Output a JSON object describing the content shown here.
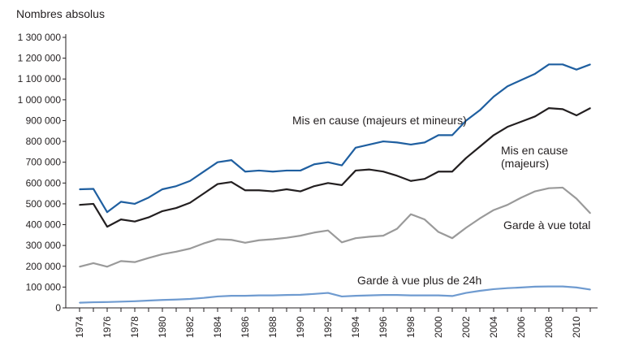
{
  "chart_data": {
    "type": "line",
    "ylabel": "Nombres absolus",
    "ylim": [
      0,
      1300000
    ],
    "yticks": [
      0,
      100000,
      200000,
      300000,
      400000,
      500000,
      600000,
      700000,
      800000,
      900000,
      1000000,
      1100000,
      1200000,
      1300000
    ],
    "ytick_labels": [
      "0",
      "100 000",
      "200 000",
      "300 000",
      "400 000",
      "500 000",
      "600 000",
      "700 000",
      "800 000",
      "900 000",
      "1 000 000",
      "1 100 000",
      "1 200 000",
      "1 300 000"
    ],
    "x": [
      1974,
      1975,
      1976,
      1977,
      1978,
      1979,
      1980,
      1981,
      1982,
      1983,
      1984,
      1985,
      1986,
      1987,
      1988,
      1989,
      1990,
      1991,
      1992,
      1993,
      1994,
      1995,
      1996,
      1997,
      1998,
      1999,
      2000,
      2001,
      2002,
      2003,
      2004,
      2005,
      2006,
      2007,
      2008,
      2009,
      2010,
      2011
    ],
    "xtick_labels": [
      "1974",
      "1976",
      "1978",
      "1980",
      "1982",
      "1984",
      "1986",
      "1988",
      "1990",
      "1992",
      "1994",
      "1996",
      "1998",
      "2000",
      "2002",
      "2004",
      "2006",
      "2008",
      "2010"
    ],
    "grid": false,
    "series": [
      {
        "name": "Mis en cause (majeurs et mineurs)",
        "color": "#1f5fa0",
        "values": [
          570000,
          572000,
          460000,
          510000,
          500000,
          530000,
          570000,
          585000,
          610000,
          655000,
          700000,
          710000,
          655000,
          660000,
          655000,
          660000,
          660000,
          690000,
          700000,
          685000,
          770000,
          785000,
          800000,
          795000,
          785000,
          795000,
          830000,
          830000,
          900000,
          950000,
          1015000,
          1065000,
          1095000,
          1125000,
          1170000,
          1170000,
          1145000,
          1170000
        ]
      },
      {
        "name": "Mis en cause (majeurs)",
        "color": "#231f20",
        "values": [
          495000,
          500000,
          390000,
          425000,
          415000,
          435000,
          465000,
          480000,
          505000,
          550000,
          595000,
          605000,
          565000,
          565000,
          560000,
          570000,
          560000,
          585000,
          600000,
          590000,
          660000,
          665000,
          655000,
          635000,
          610000,
          620000,
          655000,
          655000,
          720000,
          775000,
          830000,
          870000,
          895000,
          920000,
          960000,
          955000,
          925000,
          960000
        ]
      },
      {
        "name": "Garde à vue total",
        "color": "#9a9a9a",
        "values": [
          198000,
          215000,
          198000,
          225000,
          220000,
          240000,
          258000,
          270000,
          285000,
          310000,
          330000,
          327000,
          313000,
          325000,
          330000,
          337000,
          347000,
          362000,
          372000,
          315000,
          335000,
          342000,
          347000,
          380000,
          450000,
          425000,
          365000,
          335000,
          385000,
          430000,
          470000,
          495000,
          530000,
          560000,
          575000,
          578000,
          525000,
          455000
        ]
      },
      {
        "name": "Garde à vue plus de 24h",
        "color": "#6f9bd0",
        "values": [
          25000,
          27000,
          28000,
          30000,
          32000,
          35000,
          38000,
          40000,
          43000,
          48000,
          55000,
          58000,
          58000,
          60000,
          60000,
          62000,
          63000,
          67000,
          72000,
          55000,
          58000,
          60000,
          62000,
          62000,
          60000,
          60000,
          60000,
          57000,
          72000,
          82000,
          90000,
          95000,
          98000,
          102000,
          103000,
          103000,
          98000,
          88000
        ]
      }
    ],
    "annotations": [
      "Mis en cause (majeurs et mineurs)",
      "Mis en cause",
      "(majeurs)",
      "Garde à vue total",
      "Garde à vue plus de 24h"
    ]
  }
}
